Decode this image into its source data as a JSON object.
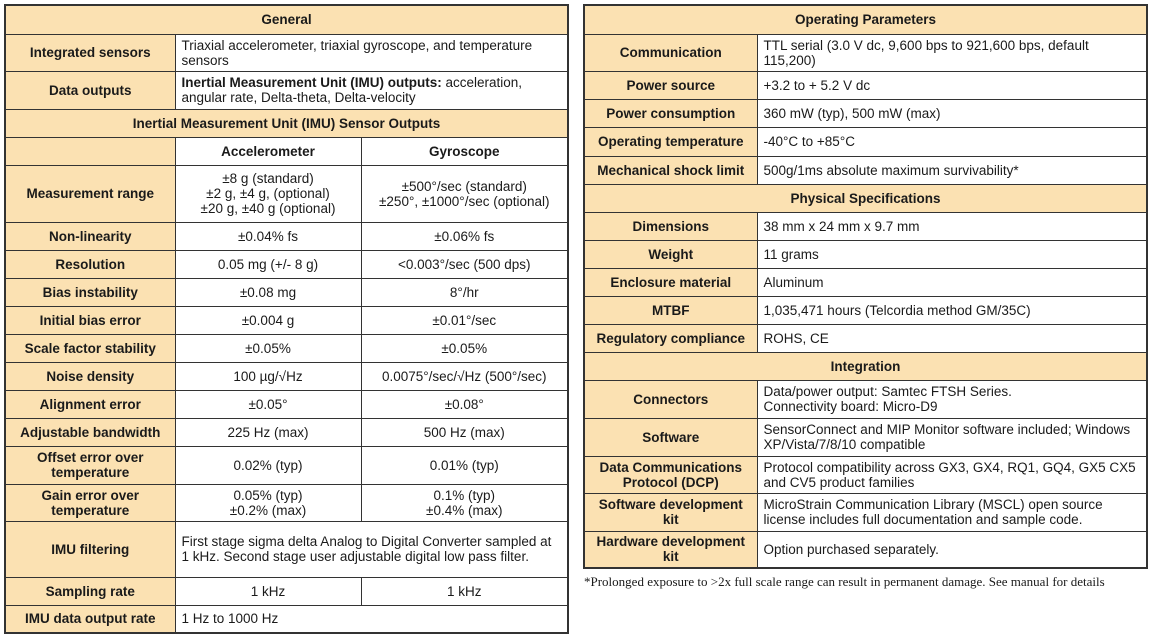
{
  "left": {
    "general_title": "General",
    "general": [
      {
        "label": "Integrated sensors",
        "value": "Triaxial accelerometer, triaxial gyroscope, and temperature sensors"
      },
      {
        "label": "Data outputs",
        "value_bold": "Inertial Measurement Unit (IMU) outputs:",
        "value": " acceleration, angular rate, Delta-theta, Delta-velocity"
      }
    ],
    "imu_title": "Inertial Measurement Unit (IMU) Sensor Outputs",
    "columns": [
      "Accelerometer",
      "Gyroscope"
    ],
    "rows": [
      {
        "label": "Measurement range",
        "accel": "±8 g (standard)\n±2 g, ±4 g, (optional)\n±20 g, ±40 g (optional)",
        "gyro": "±500°/sec (standard)\n±250°, ±1000°/sec (optional)",
        "h": 57
      },
      {
        "label": "Non-linearity",
        "accel": "±0.04% fs",
        "gyro": "±0.06% fs",
        "h": 28
      },
      {
        "label": "Resolution",
        "accel": "0.05 mg (+/- 8 g)",
        "gyro": "<0.003°/sec (500 dps)",
        "h": 28
      },
      {
        "label": "Bias instability",
        "accel": "±0.08 mg",
        "gyro": "8°/hr",
        "h": 28
      },
      {
        "label": "Initial bias error",
        "accel": "±0.004 g",
        "gyro": "±0.01°/sec",
        "h": 28
      },
      {
        "label": "Scale factor stability",
        "accel": "±0.05%",
        "gyro": "±0.05%",
        "h": 28
      },
      {
        "label": "Noise density",
        "accel": "100 µg/√Hz",
        "gyro": "0.0075°/sec/√Hz (500°/sec)",
        "h": 28
      },
      {
        "label": "Alignment error",
        "accel": "±0.05°",
        "gyro": "±0.08°",
        "h": 28
      },
      {
        "label": "Adjustable bandwidth",
        "accel": "225 Hz (max)",
        "gyro": "500 Hz (max)",
        "h": 28
      },
      {
        "label": "Offset error over temperature",
        "accel": "0.02% (typ)",
        "gyro": "0.01% (typ)",
        "h": 38
      },
      {
        "label": "Gain error over temperature",
        "accel": "0.05% (typ)\n±0.2% (max)",
        "gyro": "0.1% (typ)\n±0.4% (max)",
        "h": 37
      },
      {
        "label": "IMU filtering",
        "span": "First stage sigma delta Analog to Digital Converter sampled at 1 kHz. Second stage user adjustable digital low pass filter.",
        "h": 56
      },
      {
        "label": "Sampling rate",
        "accel": "1 kHz",
        "gyro": "1 kHz",
        "h": 28
      },
      {
        "label": "IMU data output rate",
        "span": "1 Hz to 1000 Hz",
        "h": 28
      }
    ]
  },
  "right": {
    "sections": [
      {
        "title": "Operating Parameters",
        "rows": [
          {
            "label": "Communication",
            "value": "TTL serial (3.0 V dc, 9,600 bps to 921,600 bps, default 115,200)",
            "h": 37
          },
          {
            "label": "Power source",
            "value": "+3.2 to + 5.2 V dc",
            "h": 28
          },
          {
            "label": "Power consumption",
            "value": "360 mW (typ), 500 mW (max)",
            "h": 28
          },
          {
            "label": "Operating temperature",
            "value": "-40°C to +85°C",
            "h": 29
          },
          {
            "label": "Mechanical shock limit",
            "value": "500g/1ms absolute maximum survivability*",
            "h": 28
          }
        ]
      },
      {
        "title": "Physical Specifications",
        "rows": [
          {
            "label": "Dimensions",
            "value": "38 mm x 24 mm x 9.7 mm",
            "h": 28
          },
          {
            "label": "Weight",
            "value": "11 grams",
            "h": 28
          },
          {
            "label": "Enclosure material",
            "value": "Aluminum",
            "h": 28
          },
          {
            "label": "MTBF",
            "value": "1,035,471 hours (Telcordia method GM/35C)",
            "h": 28
          },
          {
            "label": "Regulatory compliance",
            "value": "ROHS, CE",
            "h": 28
          }
        ]
      },
      {
        "title": "Integration",
        "rows": [
          {
            "label": "Connectors",
            "value": "Data/power output: Samtec FTSH Series.\nConnectivity board: Micro-D9",
            "h": 38
          },
          {
            "label": "Software",
            "value": "SensorConnect and MIP Monitor software included; Windows XP/Vista/7/8/10 compatible",
            "h": 38
          },
          {
            "label": "Data Communications Protocol (DCP)",
            "value": "Protocol compatibility across GX3, GX4, RQ1, GQ4, GX5 CX5 and CV5 product families",
            "h": 37
          },
          {
            "label": "Software development kit",
            "value": "MicroStrain Communication Library (MSCL) open source license includes full documentation and sample code.",
            "h": 38
          },
          {
            "label": "Hardware development kit",
            "value": "Option purchased separately.",
            "h": 37
          }
        ]
      }
    ],
    "footnote": "*Prolonged exposure to >2x full scale range can result in permanent damage. See manual for details"
  }
}
